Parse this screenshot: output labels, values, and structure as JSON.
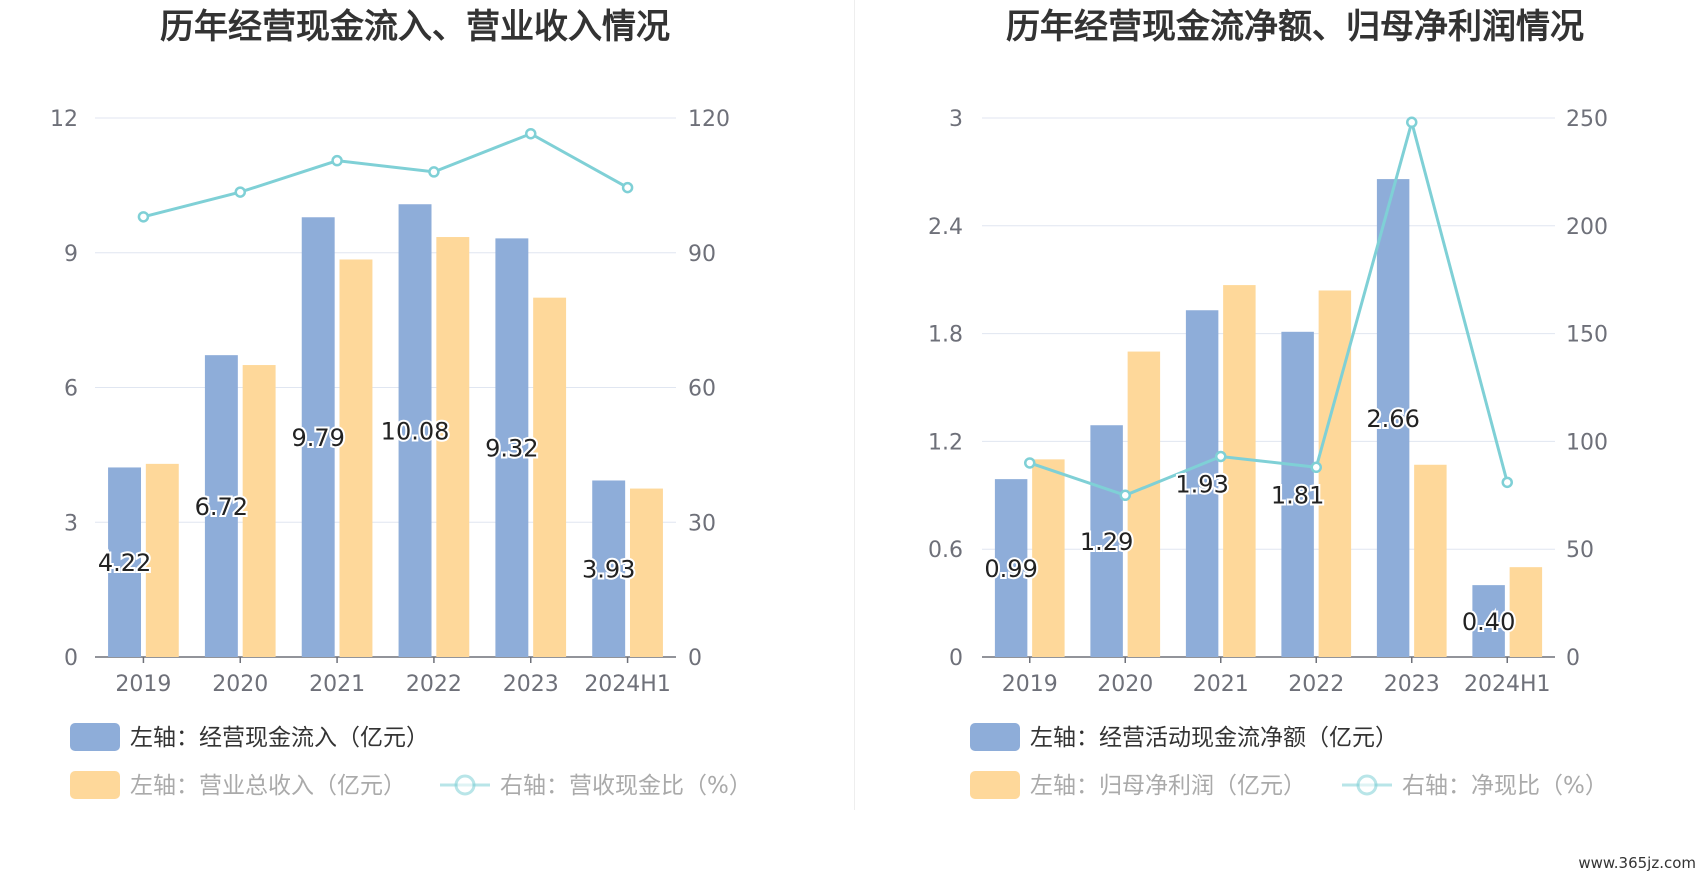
{
  "chart_data": [
    {
      "type": "bar",
      "title": "历年经营现金流入、营业收入情况",
      "categories": [
        "2019",
        "2020",
        "2021",
        "2022",
        "2023",
        "2024H1"
      ],
      "left_axis": {
        "min": 0,
        "max": 12,
        "ticks": [
          "0",
          "3",
          "6",
          "9",
          "12"
        ]
      },
      "right_axis": {
        "min": 0,
        "max": 120,
        "ticks": [
          "0",
          "30",
          "60",
          "90",
          "120"
        ]
      },
      "series": [
        {
          "name": "左轴：经营现金流入（亿元）",
          "axis": "left",
          "kind": "bar",
          "color": "#8eadd9",
          "values": [
            4.22,
            6.72,
            9.79,
            10.08,
            9.32,
            3.93
          ],
          "labels": [
            "4.22",
            "6.72",
            "9.79",
            "10.08",
            "9.32",
            "3.93"
          ]
        },
        {
          "name": "左轴：营业总收入（亿元）",
          "axis": "left",
          "kind": "bar",
          "color": "#fed89a",
          "values": [
            4.3,
            6.5,
            8.85,
            9.35,
            8.0,
            3.75
          ]
        },
        {
          "name": "右轴：营收现金比（%）",
          "axis": "right",
          "kind": "line",
          "color": "#7fd0d6",
          "values": [
            98,
            103.5,
            110.5,
            108,
            116.5,
            104.5
          ]
        }
      ],
      "grid": true,
      "legend": "bottom"
    },
    {
      "type": "bar",
      "title": "历年经营现金流净额、归母净利润情况",
      "categories": [
        "2019",
        "2020",
        "2021",
        "2022",
        "2023",
        "2024H1"
      ],
      "left_axis": {
        "min": 0,
        "max": 3,
        "ticks": [
          "0",
          "0.6",
          "1.2",
          "1.8",
          "2.4",
          "3"
        ]
      },
      "right_axis": {
        "min": 0,
        "max": 250,
        "ticks": [
          "0",
          "50",
          "100",
          "150",
          "200",
          "250"
        ]
      },
      "series": [
        {
          "name": "左轴：经营活动现金流净额（亿元）",
          "axis": "left",
          "kind": "bar",
          "color": "#8eadd9",
          "values": [
            0.99,
            1.29,
            1.93,
            1.81,
            2.66,
            0.4
          ],
          "labels": [
            "0.99",
            "1.29",
            "1.93",
            "1.81",
            "2.66",
            "0.40"
          ]
        },
        {
          "name": "左轴：归母净利润（亿元）",
          "axis": "left",
          "kind": "bar",
          "color": "#fed89a",
          "values": [
            1.1,
            1.7,
            2.07,
            2.04,
            1.07,
            0.5
          ]
        },
        {
          "name": "右轴：净现比（%）",
          "axis": "right",
          "kind": "line",
          "color": "#7fd0d6",
          "values": [
            90,
            75,
            93,
            88,
            248,
            81
          ]
        }
      ],
      "grid": true,
      "legend": "bottom"
    }
  ],
  "watermark": "www.365jz.com"
}
